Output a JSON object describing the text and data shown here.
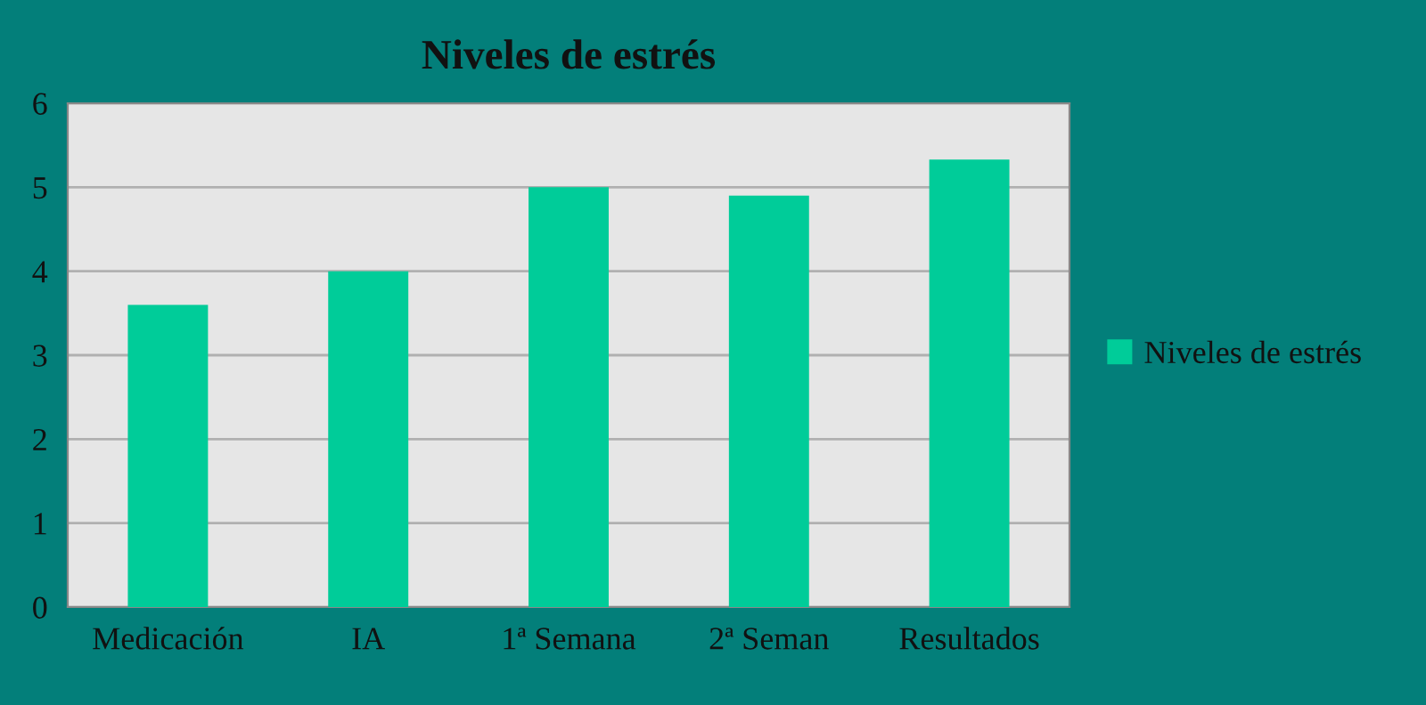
{
  "chart_data": {
    "type": "bar",
    "title": "Niveles de estrés",
    "categories": [
      "Medicación",
      "IA",
      "1ª Semana",
      "2ª Seman",
      "Resultados"
    ],
    "series": [
      {
        "name": "Niveles de estrés",
        "color": "#00cc99",
        "values": [
          3.6,
          4.0,
          5.0,
          4.9,
          5.33
        ]
      }
    ],
    "ylim": [
      0,
      6
    ],
    "yticks": [
      0,
      1,
      2,
      3,
      4,
      5,
      6
    ],
    "grid": "y",
    "legend": "right"
  }
}
